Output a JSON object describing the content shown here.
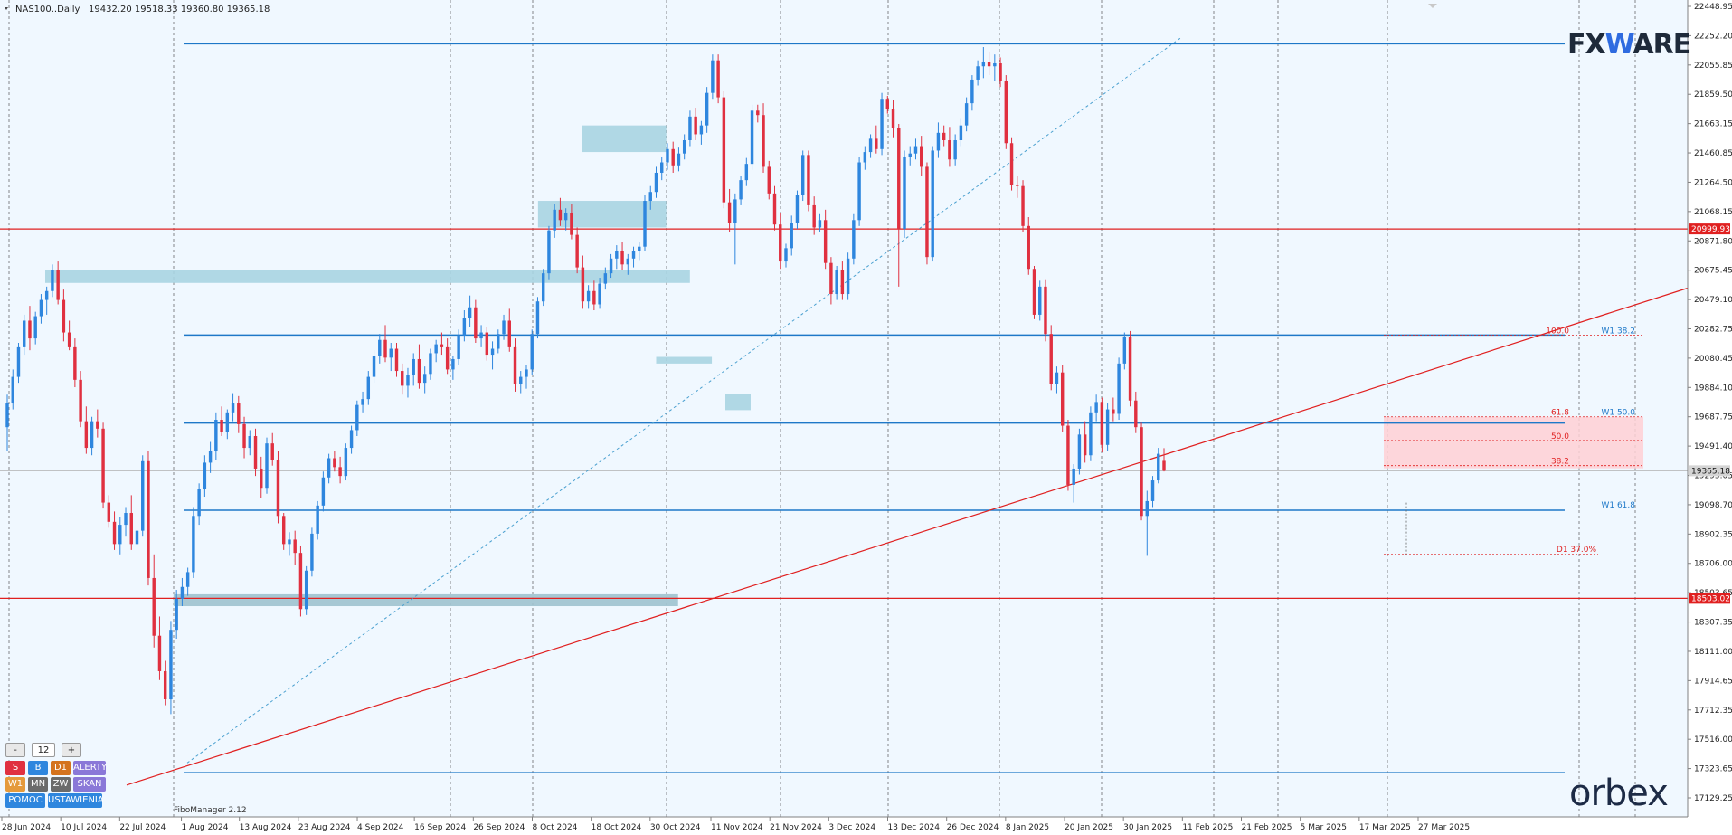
{
  "header": {
    "symbol": "NAS100..Daily",
    "ohlc": "19432.20 19518.33 19360.80 19365.18"
  },
  "branding": {
    "fxware_pre": "FX",
    "fxware_w": "W",
    "fxware_post": "ARE",
    "orbex": "orbex",
    "indicator": "FiboManager 2.12"
  },
  "colors": {
    "background": "#f0f8ff",
    "bull": "#2e86de",
    "bear": "#e03040",
    "hline": "#1e78c8",
    "redline": "#e02020",
    "zone": "#a8d4e2",
    "zone_dark": "#9ec2cf",
    "pink": "#ffd0d5",
    "fibo_blue": "#4aa0d0"
  },
  "panel": {
    "minus": "-",
    "period": "12",
    "plus": "+",
    "buttons": [
      {
        "label": "S",
        "color": "#e03040",
        "w": 22
      },
      {
        "label": "B",
        "color": "#2e86de",
        "w": 22
      },
      {
        "label": "D1",
        "color": "#d4731e",
        "w": 22
      },
      {
        "label": "ALERTY",
        "color": "#8a78d8",
        "w": 36
      },
      {
        "label": "W1",
        "color": "#e59a3c",
        "w": 22
      },
      {
        "label": "MN",
        "color": "#6b6b6b",
        "w": 22
      },
      {
        "label": "ZW",
        "color": "#6b6b6b",
        "w": 22
      },
      {
        "label": "SKAN",
        "color": "#8a78d8",
        "w": 36
      },
      {
        "label": "POMOC",
        "color": "#2e86de",
        "w": 44
      },
      {
        "label": "USTAWIENIA",
        "color": "#2e86de",
        "w": 60
      }
    ]
  },
  "chart_data": {
    "type": "candlestick",
    "symbol": "NAS100",
    "timeframe": "Daily",
    "ylim": [
      17025,
      22548
    ],
    "price_axis_ticks": [
      "22448.95",
      "22252.20",
      "22055.85",
      "21859.50",
      "21663.15",
      "21460.85",
      "21264.50",
      "21068.15",
      "20871.80",
      "20675.45",
      "20479.10",
      "20282.75",
      "20080.45",
      "19884.10",
      "19687.75",
      "19491.40",
      "19295.05",
      "19098.70",
      "18902.35",
      "18706.00",
      "18503.65",
      "18307.35",
      "18111.00",
      "17914.65",
      "17712.35",
      "17516.00",
      "17323.65",
      "17129.25"
    ],
    "date_labels": [
      "28 Jun 2024",
      "10 Jul 2024",
      "22 Jul 2024",
      "1 Aug 2024",
      "13 Aug 2024",
      "23 Aug 2024",
      "4 Sep 2024",
      "16 Sep 2024",
      "26 Sep 2024",
      "8 Oct 2024",
      "18 Oct 2024",
      "30 Oct 2024",
      "11 Nov 2024",
      "21 Nov 2024",
      "3 Dec 2024",
      "13 Dec 2024",
      "26 Dec 2024",
      "8 Jan 2025",
      "20 Jan 2025",
      "30 Jan 2025",
      "11 Feb 2025",
      "21 Feb 2025",
      "5 Mar 2025",
      "17 Mar 2025",
      "27 Mar 2025"
    ],
    "current_price": "19365.18",
    "red_levels": [
      {
        "value": 20999.93,
        "label": "20999.93"
      },
      {
        "value": 18503.02,
        "label": "18503.02"
      }
    ],
    "blue_levels": [
      22252.2,
      20282.75,
      19687.75,
      19098.7,
      17323.65
    ],
    "zones": [
      {
        "from": 0.0,
        "to": 38.2,
        "top": 20720,
        "bottom": 20635
      },
      {
        "from": 7.6,
        "to": 37.5,
        "top": 18530,
        "bottom": 18450
      },
      {
        "from": 31.8,
        "to": 36.8,
        "top": 21700,
        "bottom": 21520
      },
      {
        "from": 29.2,
        "to": 36.8,
        "top": 21190,
        "bottom": 21010
      },
      {
        "from": 36.2,
        "to": 39.5,
        "top": 20135,
        "bottom": 20090
      },
      {
        "from": 40.3,
        "to": 41.8,
        "top": 19885,
        "bottom": 19775
      }
    ],
    "fibo": {
      "levels": [
        {
          "value": 20282.75,
          "label": "100.0",
          "tag": "W1 38.2"
        },
        {
          "value": 19730,
          "label": "61.8",
          "tag": "W1 50.0"
        },
        {
          "value": 19570,
          "label": "50.0",
          "tag": ""
        },
        {
          "value": 19400,
          "label": "38.2",
          "tag": ""
        }
      ],
      "w1_618": "W1 61.8",
      "d1_label": "D1 37.0%",
      "d1_value": 18800
    },
    "candles": [
      [
        19660,
        19880,
        19500,
        19820
      ],
      [
        19820,
        20050,
        19780,
        20000
      ],
      [
        20000,
        20230,
        19960,
        20200
      ],
      [
        20200,
        20420,
        20150,
        20380
      ],
      [
        20380,
        20480,
        20180,
        20260
      ],
      [
        20260,
        20440,
        20220,
        20410
      ],
      [
        20410,
        20560,
        20360,
        20520
      ],
      [
        20520,
        20610,
        20420,
        20580
      ],
      [
        20580,
        20760,
        20540,
        20720
      ],
      [
        20720,
        20780,
        20490,
        20520
      ],
      [
        20520,
        20590,
        20240,
        20300
      ],
      [
        20300,
        20380,
        20180,
        20200
      ],
      [
        20200,
        20260,
        19930,
        19980
      ],
      [
        19980,
        20040,
        19660,
        19700
      ],
      [
        19700,
        19800,
        19480,
        19520
      ],
      [
        19520,
        19730,
        19470,
        19700
      ],
      [
        19700,
        19780,
        19590,
        19650
      ],
      [
        19650,
        19690,
        19110,
        19150
      ],
      [
        19150,
        19200,
        18980,
        19020
      ],
      [
        19020,
        19090,
        18830,
        18870
      ],
      [
        18870,
        19050,
        18800,
        19000
      ],
      [
        19000,
        19120,
        18920,
        19080
      ],
      [
        19080,
        19200,
        18830,
        18870
      ],
      [
        18870,
        19010,
        18760,
        18960
      ],
      [
        18960,
        19470,
        18920,
        19430
      ],
      [
        19430,
        19500,
        18590,
        18640
      ],
      [
        18640,
        18800,
        18170,
        18250
      ],
      [
        18250,
        18380,
        17950,
        18010
      ],
      [
        18010,
        18080,
        17780,
        17820
      ],
      [
        17820,
        18350,
        17720,
        18290
      ],
      [
        18290,
        18560,
        18230,
        18500
      ],
      [
        18500,
        18640,
        18450,
        18580
      ],
      [
        18580,
        18710,
        18520,
        18680
      ],
      [
        18680,
        19120,
        18640,
        19060
      ],
      [
        19060,
        19280,
        19000,
        19240
      ],
      [
        19240,
        19470,
        19190,
        19420
      ],
      [
        19420,
        19560,
        19350,
        19500
      ],
      [
        19500,
        19760,
        19440,
        19710
      ],
      [
        19710,
        19800,
        19600,
        19630
      ],
      [
        19630,
        19780,
        19580,
        19760
      ],
      [
        19760,
        19890,
        19700,
        19820
      ],
      [
        19820,
        19870,
        19620,
        19680
      ],
      [
        19680,
        19730,
        19450,
        19520
      ],
      [
        19520,
        19640,
        19470,
        19600
      ],
      [
        19600,
        19650,
        19330,
        19380
      ],
      [
        19380,
        19460,
        19180,
        19250
      ],
      [
        19250,
        19590,
        19210,
        19550
      ],
      [
        19550,
        19620,
        19400,
        19440
      ],
      [
        19440,
        19500,
        19010,
        19060
      ],
      [
        19060,
        19080,
        18830,
        18870
      ],
      [
        18870,
        18950,
        18790,
        18900
      ],
      [
        18900,
        18960,
        18730,
        18810
      ],
      [
        18810,
        18860,
        18380,
        18430
      ],
      [
        18430,
        18720,
        18390,
        18690
      ],
      [
        18690,
        18980,
        18650,
        18940
      ],
      [
        18940,
        19160,
        18900,
        19130
      ],
      [
        19130,
        19360,
        19090,
        19320
      ],
      [
        19320,
        19480,
        19280,
        19450
      ],
      [
        19450,
        19500,
        19360,
        19390
      ],
      [
        19390,
        19460,
        19280,
        19330
      ],
      [
        19330,
        19550,
        19300,
        19520
      ],
      [
        19520,
        19670,
        19480,
        19640
      ],
      [
        19640,
        19840,
        19600,
        19810
      ],
      [
        19810,
        19900,
        19760,
        19850
      ],
      [
        19850,
        20040,
        19810,
        20000
      ],
      [
        20000,
        20180,
        19960,
        20140
      ],
      [
        20140,
        20290,
        20090,
        20250
      ],
      [
        20250,
        20350,
        20100,
        20130
      ],
      [
        20130,
        20230,
        20040,
        20190
      ],
      [
        20190,
        20230,
        20000,
        20040
      ],
      [
        20040,
        20090,
        19880,
        19940
      ],
      [
        19940,
        20060,
        19860,
        20010
      ],
      [
        20010,
        20160,
        19940,
        20120
      ],
      [
        20120,
        20220,
        19920,
        19960
      ],
      [
        19960,
        20070,
        19890,
        20020
      ],
      [
        20020,
        20190,
        19980,
        20160
      ],
      [
        20160,
        20250,
        20100,
        20220
      ],
      [
        20220,
        20300,
        20150,
        20200
      ],
      [
        20200,
        20260,
        20020,
        20050
      ],
      [
        20050,
        20140,
        19980,
        20120
      ],
      [
        20120,
        20320,
        20080,
        20280
      ],
      [
        20280,
        20450,
        20240,
        20400
      ],
      [
        20400,
        20550,
        20340,
        20470
      ],
      [
        20470,
        20520,
        20230,
        20260
      ],
      [
        20260,
        20350,
        20200,
        20300
      ],
      [
        20300,
        20340,
        20110,
        20150
      ],
      [
        20150,
        20240,
        20050,
        20190
      ],
      [
        20190,
        20320,
        20160,
        20290
      ],
      [
        20290,
        20420,
        20250,
        20380
      ],
      [
        20380,
        20460,
        20170,
        20200
      ],
      [
        20200,
        20260,
        19900,
        19950
      ],
      [
        19950,
        20040,
        19890,
        20000
      ],
      [
        20000,
        20080,
        19920,
        20050
      ],
      [
        20050,
        20320,
        20010,
        20290
      ],
      [
        20290,
        20540,
        20260,
        20510
      ],
      [
        20510,
        20730,
        20480,
        20700
      ],
      [
        20700,
        21020,
        20660,
        20990
      ],
      [
        20990,
        21170,
        20940,
        21130
      ],
      [
        21130,
        21210,
        21020,
        21060
      ],
      [
        21060,
        21140,
        20990,
        21110
      ],
      [
        21110,
        21170,
        20930,
        20960
      ],
      [
        20960,
        21010,
        20700,
        20740
      ],
      [
        20740,
        20820,
        20460,
        20510
      ],
      [
        20510,
        20620,
        20460,
        20580
      ],
      [
        20580,
        20650,
        20450,
        20490
      ],
      [
        20490,
        20670,
        20460,
        20630
      ],
      [
        20630,
        20740,
        20590,
        20700
      ],
      [
        20700,
        20830,
        20670,
        20800
      ],
      [
        20800,
        20890,
        20730,
        20850
      ],
      [
        20850,
        20910,
        20720,
        20760
      ],
      [
        20760,
        20830,
        20690,
        20800
      ],
      [
        20800,
        20880,
        20740,
        20850
      ],
      [
        20850,
        20910,
        20790,
        20880
      ],
      [
        20880,
        21230,
        20850,
        21190
      ],
      [
        21190,
        21290,
        21130,
        21250
      ],
      [
        21250,
        21420,
        21210,
        21380
      ],
      [
        21380,
        21490,
        21330,
        21450
      ],
      [
        21450,
        21580,
        21400,
        21540
      ],
      [
        21540,
        21590,
        21380,
        21430
      ],
      [
        21430,
        21550,
        21390,
        21510
      ],
      [
        21510,
        21640,
        21470,
        21600
      ],
      [
        21600,
        21800,
        21560,
        21760
      ],
      [
        21760,
        21820,
        21600,
        21640
      ],
      [
        21640,
        21730,
        21570,
        21700
      ],
      [
        21700,
        21960,
        21650,
        21920
      ],
      [
        21920,
        22180,
        21880,
        22140
      ],
      [
        22140,
        22180,
        21850,
        21890
      ],
      [
        21890,
        21930,
        21140,
        21180
      ],
      [
        21180,
        21270,
        20980,
        21040
      ],
      [
        21040,
        21240,
        20760,
        21200
      ],
      [
        21200,
        21360,
        21160,
        21330
      ],
      [
        21330,
        21480,
        21290,
        21440
      ],
      [
        21440,
        21840,
        21400,
        21800
      ],
      [
        21800,
        21840,
        21720,
        21770
      ],
      [
        21770,
        21850,
        21380,
        21420
      ],
      [
        21420,
        21460,
        21200,
        21240
      ],
      [
        21240,
        21290,
        20990,
        21030
      ],
      [
        21030,
        21110,
        20730,
        20780
      ],
      [
        20780,
        20900,
        20740,
        20870
      ],
      [
        20870,
        21090,
        20820,
        21040
      ],
      [
        21040,
        21260,
        21000,
        21230
      ],
      [
        21230,
        21530,
        21190,
        21500
      ],
      [
        21500,
        21530,
        21120,
        21160
      ],
      [
        21160,
        21220,
        20960,
        21010
      ],
      [
        21010,
        21100,
        20980,
        21060
      ],
      [
        21060,
        21130,
        20730,
        20770
      ],
      [
        20770,
        20810,
        20490,
        20560
      ],
      [
        20560,
        20750,
        20520,
        20720
      ],
      [
        20720,
        20780,
        20520,
        20560
      ],
      [
        20560,
        20840,
        20520,
        20800
      ],
      [
        20800,
        21100,
        20760,
        21060
      ],
      [
        21060,
        21490,
        21020,
        21450
      ],
      [
        21450,
        21560,
        21400,
        21520
      ],
      [
        21520,
        21640,
        21480,
        21610
      ],
      [
        21610,
        21700,
        21510,
        21540
      ],
      [
        21540,
        21920,
        21500,
        21880
      ],
      [
        21880,
        21900,
        21780,
        21810
      ],
      [
        21810,
        21870,
        21620,
        21680
      ],
      [
        21680,
        21710,
        20610,
        21000
      ],
      [
        21000,
        21530,
        20940,
        21490
      ],
      [
        21490,
        21560,
        21430,
        21510
      ],
      [
        21510,
        21610,
        21470,
        21560
      ],
      [
        21560,
        21630,
        21360,
        21420
      ],
      [
        21420,
        21450,
        20760,
        20810
      ],
      [
        20810,
        21560,
        20780,
        21530
      ],
      [
        21530,
        21720,
        21480,
        21650
      ],
      [
        21650,
        21700,
        21560,
        21600
      ],
      [
        21600,
        21690,
        21420,
        21470
      ],
      [
        21470,
        21640,
        21430,
        21600
      ],
      [
        21600,
        21750,
        21560,
        21700
      ],
      [
        21700,
        21890,
        21660,
        21850
      ],
      [
        21850,
        22040,
        21800,
        22010
      ],
      [
        22010,
        22140,
        21970,
        22100
      ],
      [
        22100,
        22230,
        22020,
        22130
      ],
      [
        22130,
        22200,
        22040,
        22100
      ],
      [
        22100,
        22180,
        22000,
        22120
      ],
      [
        22120,
        22160,
        21960,
        22000
      ],
      [
        22000,
        22040,
        21540,
        21580
      ],
      [
        21580,
        21620,
        21260,
        21300
      ],
      [
        21300,
        21360,
        21210,
        21290
      ],
      [
        21290,
        21330,
        20980,
        21020
      ],
      [
        21020,
        21080,
        20690,
        20730
      ],
      [
        20730,
        20750,
        20390,
        20420
      ],
      [
        20420,
        20650,
        20380,
        20610
      ],
      [
        20610,
        20660,
        20240,
        20290
      ],
      [
        20290,
        20350,
        19910,
        19950
      ],
      [
        19950,
        20070,
        19890,
        20030
      ],
      [
        20030,
        20080,
        19630,
        19670
      ],
      [
        19670,
        19710,
        19230,
        19270
      ],
      [
        19270,
        19410,
        19150,
        19380
      ],
      [
        19380,
        19650,
        19340,
        19610
      ],
      [
        19610,
        19700,
        19420,
        19470
      ],
      [
        19470,
        19800,
        19430,
        19760
      ],
      [
        19760,
        19880,
        19700,
        19830
      ],
      [
        19830,
        19860,
        19490,
        19540
      ],
      [
        19540,
        19820,
        19500,
        19780
      ],
      [
        19780,
        19860,
        19700,
        19750
      ],
      [
        19750,
        20130,
        19710,
        20090
      ],
      [
        20090,
        20300,
        20050,
        20270
      ],
      [
        20270,
        20310,
        19800,
        19840
      ],
      [
        19840,
        19900,
        19620,
        19660
      ],
      [
        19660,
        19690,
        19030,
        19060
      ],
      [
        19060,
        19230,
        18790,
        19160
      ],
      [
        19160,
        19330,
        19120,
        19300
      ],
      [
        19300,
        19520,
        19280,
        19480
      ],
      [
        19432.2,
        19518.33,
        19360.8,
        19365.18
      ]
    ]
  }
}
